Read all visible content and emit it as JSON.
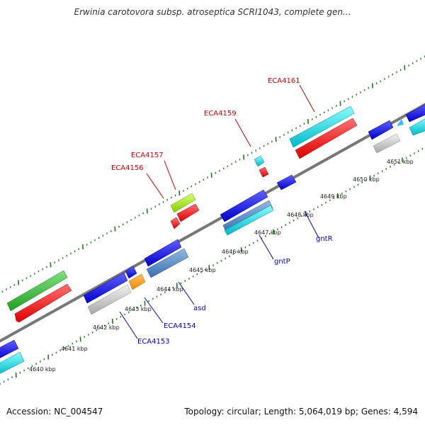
{
  "title": "Erwinia carotovora subsp. atroseptica SCRI1043, complete gen...",
  "footer": {
    "accession": "Accession: NC_004547",
    "summary": "Topology: circular; Length: 5,064,019 bp; Genes: 4,594"
  },
  "colors": {
    "backbone": "#777777",
    "tick": "#1e7a1e",
    "forward_label": "#cc0000",
    "reverse_label": "#0000cc"
  },
  "ticks": [
    "4640 kbp",
    "4641 kbp",
    "4642 kbp",
    "4643 kbp",
    "4644 kbp",
    "4645 kbp",
    "4646 kbp",
    "4647 kbp",
    "4648 kbp",
    "4649 kbp",
    "4650 kbp",
    "4651 kbp"
  ],
  "gene_labels": {
    "ECA4156": "ECA4156",
    "ECA4157": "ECA4157",
    "ECA4159": "ECA4159",
    "ECA4161": "ECA4161",
    "gntR": "gntR",
    "gntP": "gntP",
    "asd": "asd",
    "ECA4154": "ECA4154",
    "ECA4153": "ECA4153"
  }
}
